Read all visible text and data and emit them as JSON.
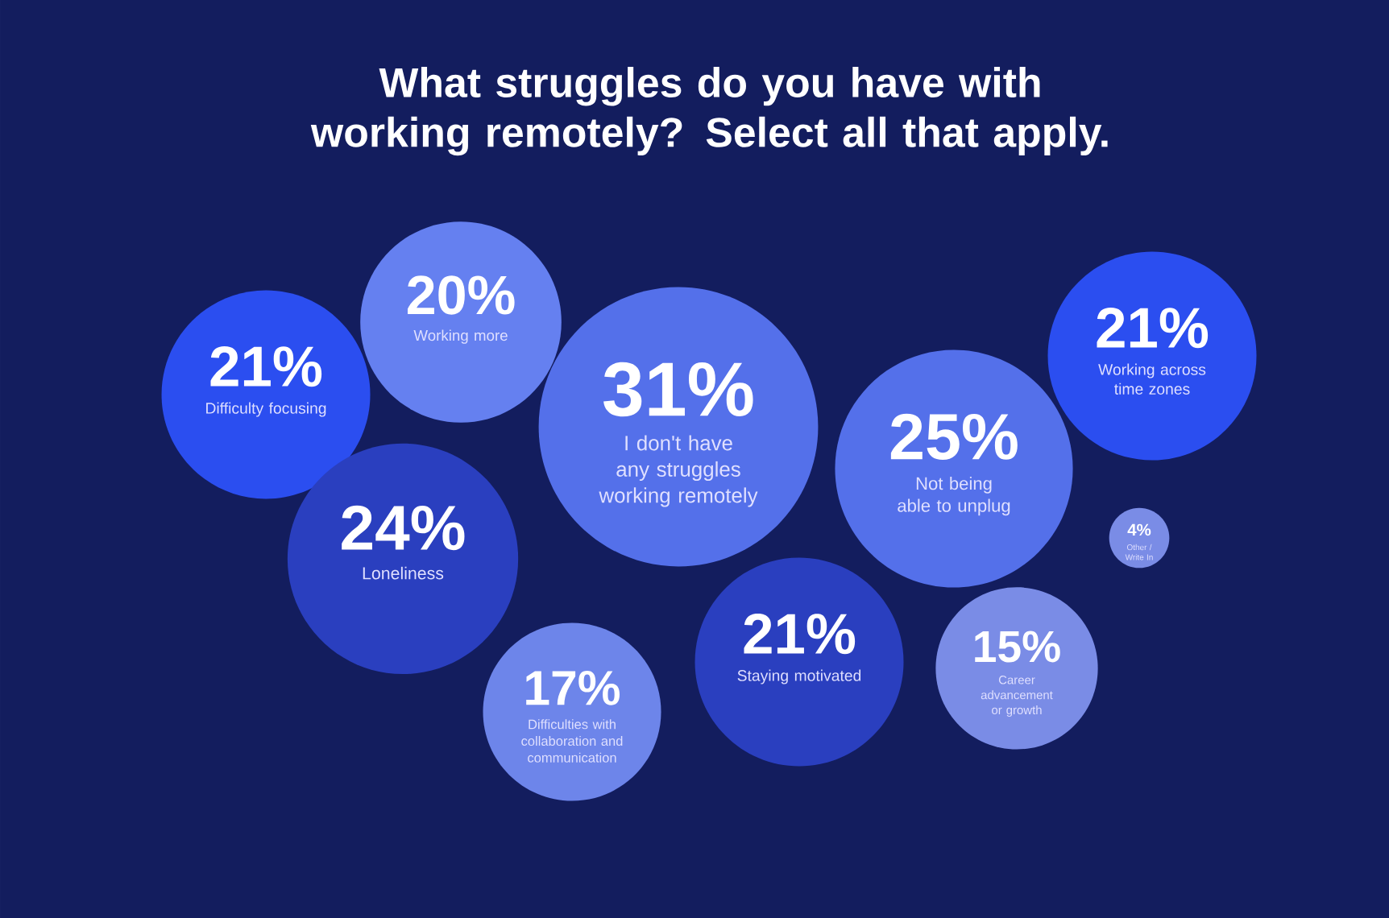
{
  "chart_data": {
    "type": "other",
    "title": "What struggles do you have with working remotely? Select all that apply.",
    "categories": [
      "Difficulty focusing",
      "Working more",
      "I don't have any struggles working remotely",
      "Loneliness",
      "Difficulties with collaboration and communication",
      "Staying motivated",
      "Not being able to unplug",
      "Working across time zones",
      "Other / Write In",
      "Career advancement or growth"
    ],
    "values": [
      21,
      20,
      31,
      24,
      17,
      21,
      25,
      21,
      4,
      15
    ],
    "value_labels": [
      "21%",
      "20%",
      "31%",
      "24%",
      "17%",
      "21%",
      "25%",
      "21%",
      "4%",
      "15%"
    ],
    "colors": [
      "#2b4ef0",
      "#6580f0",
      "#5470ea",
      "#2a3fbf",
      "#6d85ea",
      "#2a3fbf",
      "#5470ea",
      "#2b4ef0",
      "#7a8ce6",
      "#7a8ce6"
    ]
  }
}
